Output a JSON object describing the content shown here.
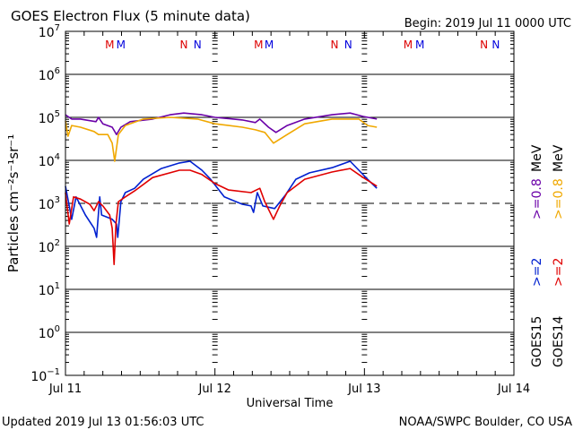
{
  "chart_data": {
    "type": "line",
    "title": "GOES Electron Flux (5 minute data)",
    "begin_label": "Begin: 2019 Jul 11 0000 UTC",
    "xlabel": "Universal Time",
    "ylabel": "Particles cm⁻²s⁻¹sr⁻¹",
    "x_unit": "hours since begin",
    "xlim": [
      0,
      72
    ],
    "x_ticks": [
      {
        "h": 0,
        "label": "Jul 11"
      },
      {
        "h": 24,
        "label": "Jul 12"
      },
      {
        "h": 48,
        "label": "Jul 13"
      },
      {
        "h": 72,
        "label": "Jul 14"
      }
    ],
    "y_scale": "log",
    "ylim_exponent": [
      -1,
      7
    ],
    "y_ticks": [
      {
        "e": 7,
        "label": "7"
      },
      {
        "e": 6,
        "label": "6"
      },
      {
        "e": 5,
        "label": "5"
      },
      {
        "e": 4,
        "label": "4"
      },
      {
        "e": 3,
        "label": "3"
      },
      {
        "e": 2,
        "label": "2"
      },
      {
        "e": 1,
        "label": "1"
      },
      {
        "e": 0,
        "label": "0"
      },
      {
        "e": -1,
        "label": "−1"
      }
    ],
    "y_tick_base": "10",
    "threshold_exponent": 3,
    "markers": [
      {
        "h": 7.1,
        "label": "M",
        "color": "#dd0000"
      },
      {
        "h": 8.9,
        "label": "M",
        "color": "#0000dd"
      },
      {
        "h": 19.0,
        "label": "N",
        "color": "#dd0000"
      },
      {
        "h": 21.2,
        "label": "N",
        "color": "#0000dd"
      },
      {
        "h": 31.0,
        "label": "M",
        "color": "#dd0000"
      },
      {
        "h": 32.7,
        "label": "M",
        "color": "#0000dd"
      },
      {
        "h": 43.2,
        "label": "N",
        "color": "#dd0000"
      },
      {
        "h": 45.4,
        "label": "N",
        "color": "#0000dd"
      },
      {
        "h": 55.0,
        "label": "M",
        "color": "#dd0000"
      },
      {
        "h": 56.9,
        "label": "M",
        "color": "#0000dd"
      },
      {
        "h": 67.2,
        "label": "N",
        "color": "#dd0000"
      },
      {
        "h": 69.1,
        "label": "N",
        "color": "#0000dd"
      }
    ],
    "value_format": "[hours, log10 flux]",
    "series": [
      {
        "name": "GOES15 >=0.8 MeV",
        "color": "#6a00a8",
        "points": [
          [
            0,
            5.06
          ],
          [
            1,
            4.96
          ],
          [
            2.4,
            4.96
          ],
          [
            4.9,
            4.9
          ],
          [
            5.3,
            5.0
          ],
          [
            6,
            4.85
          ],
          [
            7.5,
            4.77
          ],
          [
            8.2,
            4.6
          ],
          [
            8.9,
            4.77
          ],
          [
            10.4,
            4.9
          ],
          [
            14,
            4.96
          ],
          [
            16.8,
            5.06
          ],
          [
            19,
            5.1
          ],
          [
            21.9,
            5.06
          ],
          [
            24,
            5.0
          ],
          [
            28.4,
            4.94
          ],
          [
            30.5,
            4.88
          ],
          [
            31.2,
            4.96
          ],
          [
            32.6,
            4.77
          ],
          [
            33.8,
            4.65
          ],
          [
            35.6,
            4.81
          ],
          [
            38.4,
            4.96
          ],
          [
            42.8,
            5.06
          ],
          [
            45.7,
            5.1
          ],
          [
            47.8,
            5.02
          ],
          [
            50,
            4.96
          ]
        ]
      },
      {
        "name": "GOES14 >=0.8 MeV",
        "color": "#f0a800",
        "points": [
          [
            0,
            4.92
          ],
          [
            0.4,
            4.56
          ],
          [
            1,
            4.81
          ],
          [
            2.4,
            4.77
          ],
          [
            4.6,
            4.67
          ],
          [
            5.3,
            4.6
          ],
          [
            6.8,
            4.6
          ],
          [
            7.5,
            4.4
          ],
          [
            7.9,
            3.98
          ],
          [
            8.5,
            4.6
          ],
          [
            9.6,
            4.81
          ],
          [
            12.5,
            4.96
          ],
          [
            16.8,
            5.0
          ],
          [
            21.2,
            4.96
          ],
          [
            24,
            4.85
          ],
          [
            28.4,
            4.77
          ],
          [
            30.5,
            4.71
          ],
          [
            32,
            4.65
          ],
          [
            33.4,
            4.4
          ],
          [
            35.6,
            4.6
          ],
          [
            38.4,
            4.85
          ],
          [
            42.8,
            4.96
          ],
          [
            47.1,
            4.96
          ],
          [
            48.5,
            4.81
          ],
          [
            50,
            4.77
          ]
        ]
      },
      {
        "name": "GOES15 >=2 MeV",
        "color": "#0020d0",
        "points": [
          [
            0,
            3.4
          ],
          [
            0.6,
            2.94
          ],
          [
            1,
            2.63
          ],
          [
            1.7,
            3.15
          ],
          [
            3.2,
            2.73
          ],
          [
            4.6,
            2.42
          ],
          [
            5.0,
            2.21
          ],
          [
            5.5,
            3.15
          ],
          [
            5.8,
            2.73
          ],
          [
            6.8,
            2.67
          ],
          [
            7.5,
            2.63
          ],
          [
            8.2,
            2.52
          ],
          [
            8.4,
            2.21
          ],
          [
            8.9,
            3.04
          ],
          [
            9.6,
            3.25
          ],
          [
            11.1,
            3.35
          ],
          [
            12.5,
            3.56
          ],
          [
            15.4,
            3.81
          ],
          [
            18.3,
            3.94
          ],
          [
            20,
            3.98
          ],
          [
            21.9,
            3.77
          ],
          [
            23.3,
            3.56
          ],
          [
            25.5,
            3.15
          ],
          [
            28.4,
            2.98
          ],
          [
            29.8,
            2.94
          ],
          [
            30.2,
            2.79
          ],
          [
            30.8,
            3.25
          ],
          [
            31.7,
            2.94
          ],
          [
            33.6,
            2.88
          ],
          [
            35.3,
            3.19
          ],
          [
            37,
            3.56
          ],
          [
            39.2,
            3.71
          ],
          [
            42.8,
            3.83
          ],
          [
            45.7,
            3.98
          ],
          [
            47.1,
            3.77
          ],
          [
            48.5,
            3.56
          ],
          [
            50,
            3.35
          ]
        ]
      },
      {
        "name": "GOES14 >=2 MeV",
        "color": "#e00000",
        "points": [
          [
            0,
            3.25
          ],
          [
            0.6,
            2.52
          ],
          [
            1.3,
            3.15
          ],
          [
            2.4,
            3.1
          ],
          [
            3.9,
            2.98
          ],
          [
            4.6,
            2.83
          ],
          [
            5.3,
            3.04
          ],
          [
            6,
            2.94
          ],
          [
            7.1,
            2.73
          ],
          [
            7.5,
            2.42
          ],
          [
            7.8,
            1.58
          ],
          [
            8.1,
            2.52
          ],
          [
            8.5,
            3.04
          ],
          [
            9.6,
            3.15
          ],
          [
            11.1,
            3.29
          ],
          [
            14,
            3.6
          ],
          [
            18.3,
            3.77
          ],
          [
            20,
            3.77
          ],
          [
            21.9,
            3.67
          ],
          [
            24,
            3.46
          ],
          [
            26.2,
            3.31
          ],
          [
            29.8,
            3.25
          ],
          [
            31.2,
            3.35
          ],
          [
            32,
            3.04
          ],
          [
            33.4,
            2.63
          ],
          [
            34.4,
            2.94
          ],
          [
            35.6,
            3.25
          ],
          [
            38.4,
            3.56
          ],
          [
            42.8,
            3.73
          ],
          [
            45.7,
            3.81
          ],
          [
            47.8,
            3.6
          ],
          [
            50,
            3.4
          ]
        ]
      }
    ],
    "legend": {
      "placement": "right, vertical",
      "columns": [
        {
          "satellite": "GOES15",
          "items": [
            {
              "label": ">=2",
              "color": "#0020d0"
            },
            {
              "label": ">=0.8",
              "color": "#6a00a8"
            }
          ],
          "unit": "MeV"
        },
        {
          "satellite": "GOES14",
          "items": [
            {
              "label": ">=2",
              "color": "#e00000"
            },
            {
              "label": ">=0.8",
              "color": "#f0a800"
            }
          ],
          "unit": "MeV"
        }
      ]
    }
  },
  "footer": {
    "updated": "Updated 2019 Jul 13 01:56:03 UTC",
    "credit": "NOAA/SWPC Boulder, CO USA"
  }
}
